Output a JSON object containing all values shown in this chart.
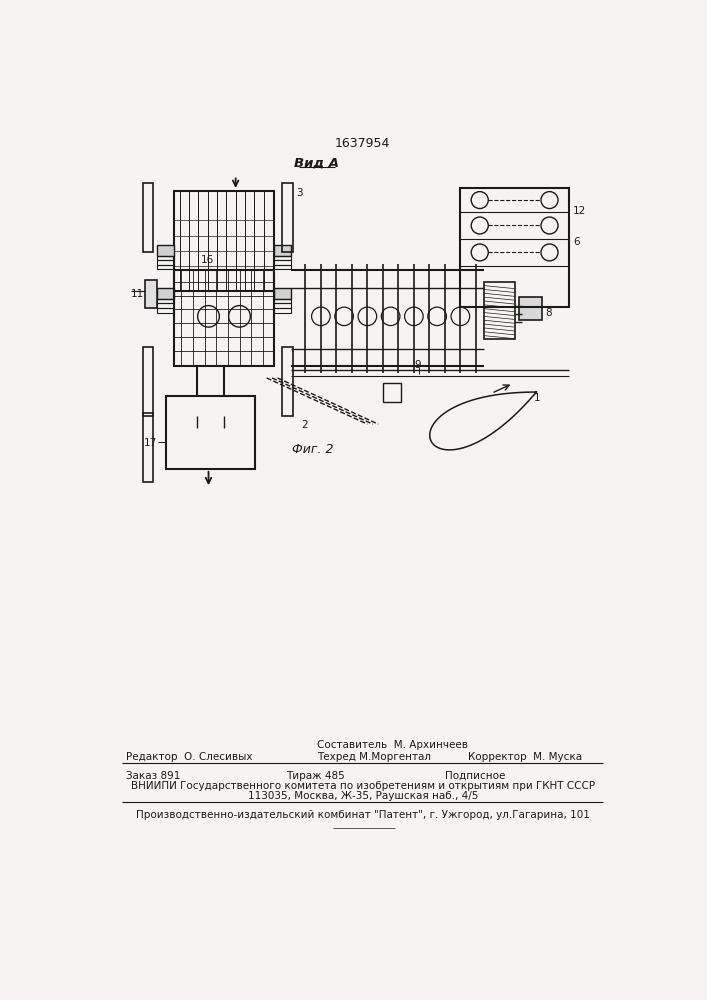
{
  "patent_number": "1637954",
  "view_label": "Вид А",
  "fig_label": "Фиг. 2",
  "bg_color": "#f5f4f0",
  "line_color": "#1a1a1a",
  "footer": {
    "line1_left": "Редактор  О. Слесивых",
    "line1_center_top": "Составитель  М. Архинчеев",
    "line1_center_bot": "Техред М.Моргентал",
    "line1_right": "Корректор  М. Муска",
    "line2_col1": "Заказ 891",
    "line2_col2": "Тираж 485",
    "line2_col3": "Подписное",
    "line3": "ВНИИПИ Государственного комитета по изобретениям и открытиям при ГКНТ СССР",
    "line4": "113035, Москва, Ж-35, Раушская наб., 4/5",
    "line5": "Производственно-издательский комбинат \"Патент\", г. Ужгород, ул.Гагарина, 101"
  }
}
